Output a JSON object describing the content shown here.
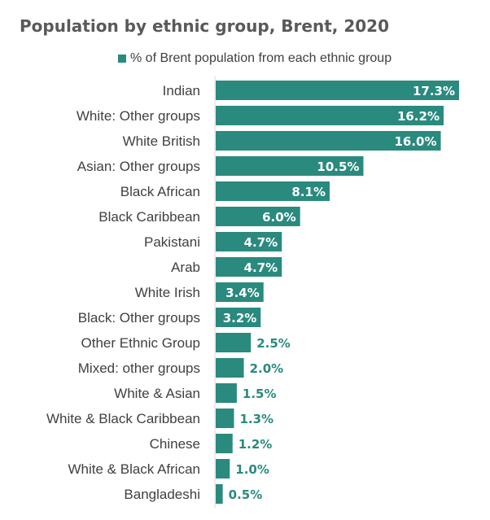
{
  "chart_data": {
    "type": "bar",
    "orientation": "horizontal",
    "title": "Population by ethnic group, Brent, 2020",
    "legend": {
      "label": "% of Brent population from each ethnic group",
      "position": "top"
    },
    "series_color": "#2a8a7e",
    "label_outside_color": "#2a8a7e",
    "label_inside_color": "#ffffff",
    "categories": [
      "Indian",
      "White: Other groups",
      "White British",
      "Asian: Other groups",
      "Black African",
      "Black Caribbean",
      "Pakistani",
      "Arab",
      "White Irish",
      "Black: Other groups",
      "Other Ethnic Group",
      "Mixed: other groups",
      "White & Asian",
      "White & Black Caribbean",
      "Chinese",
      "White & Black African",
      "Bangladeshi"
    ],
    "values": [
      17.3,
      16.2,
      16.0,
      10.5,
      8.1,
      6.0,
      4.7,
      4.7,
      3.4,
      3.2,
      2.5,
      2.0,
      1.5,
      1.3,
      1.2,
      1.0,
      0.5
    ],
    "value_labels": [
      "17.3%",
      "16.2%",
      "16.0%",
      "10.5%",
      "8.1%",
      "6.0%",
      "4.7%",
      "4.7%",
      "3.4%",
      "3.2%",
      "2.5%",
      "2.0%",
      "1.5%",
      "1.3%",
      "1.2%",
      "1.0%",
      "0.5%"
    ],
    "xlim": [
      0,
      17.3
    ],
    "grid": false
  }
}
